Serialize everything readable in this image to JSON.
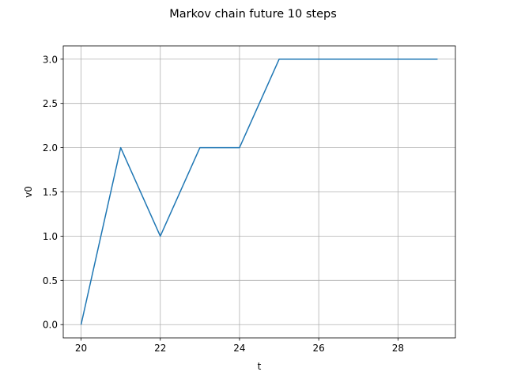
{
  "chart_data": {
    "type": "line",
    "title": "Markov chain future 10 steps",
    "xlabel": "t",
    "ylabel": "v0",
    "x": [
      20,
      21,
      22,
      23,
      24,
      25,
      26,
      27,
      28,
      29
    ],
    "series": [
      {
        "values": [
          0,
          2,
          1,
          2,
          2,
          3,
          3,
          3,
          3,
          3
        ],
        "color": "#1f77b4"
      }
    ],
    "xlim": [
      19.55,
      29.45
    ],
    "ylim": [
      -0.15,
      3.15
    ],
    "xticks": [
      20,
      22,
      24,
      26,
      28
    ],
    "xtick_labels": [
      "20",
      "22",
      "24",
      "26",
      "28"
    ],
    "yticks": [
      0,
      0.5,
      1,
      1.5,
      2,
      2.5,
      3
    ],
    "ytick_labels": [
      "0.0",
      "0.5",
      "1.0",
      "1.5",
      "2.0",
      "2.5",
      "3.0"
    ],
    "grid": true,
    "grid_color": "#b0b0b0"
  }
}
